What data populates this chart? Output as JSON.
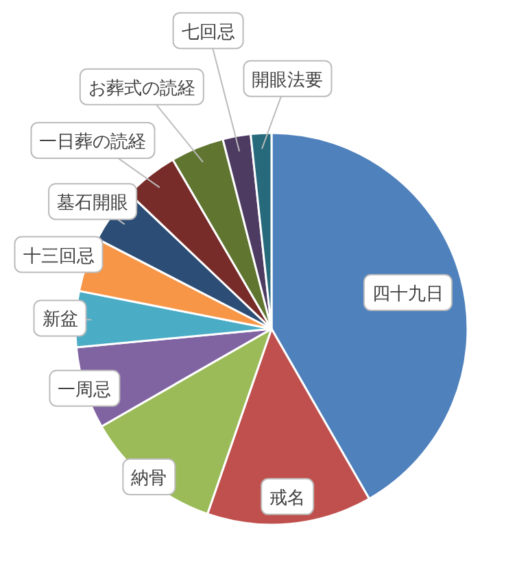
{
  "chart_data": {
    "type": "pie",
    "categories": [
      "四十九日",
      "戒名",
      "納骨",
      "一周忌",
      "新盆",
      "十三回忌",
      "墓石開眼",
      "一日葬の読経",
      "お葬式の読経",
      "七回忌",
      "開眼法要"
    ],
    "values": [
      41.7,
      13.6,
      11.4,
      6.8,
      4.6,
      4.5,
      4.5,
      4.5,
      4.4,
      2.3,
      1.7
    ],
    "colors": [
      "#4f81bd",
      "#c0504d",
      "#9bbb59",
      "#8064a2",
      "#4bacc6",
      "#f79646",
      "#2c4d75",
      "#772c2a",
      "#5f7530",
      "#4d3b62",
      "#276a7c"
    ]
  }
}
